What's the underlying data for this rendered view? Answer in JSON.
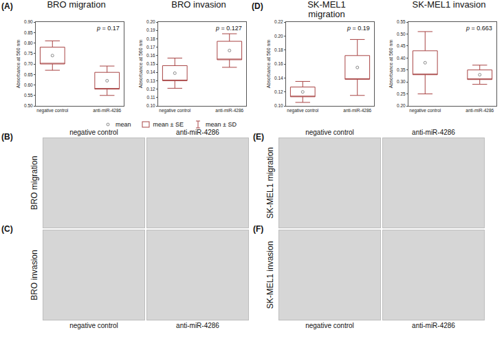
{
  "chart_data": [
    {
      "type": "box",
      "panel": "(A)",
      "title": "BRO migration",
      "categories": [
        "negative control",
        "anti-miR-4286"
      ],
      "values": [
        0.74,
        0.62
      ],
      "se": [
        0.04,
        0.04
      ],
      "sd": [
        0.07,
        0.07
      ],
      "color": "#a84444",
      "marker": "circle-open",
      "y_label": "Absorbance at 560 nm",
      "annotation": "p = 0.17",
      "ylim": [
        0.5,
        0.9
      ],
      "yticks": [
        {
          "value": 0.5,
          "label": "0.50"
        },
        0.55,
        {
          "value": 0.6,
          "label": "0.60"
        },
        0.65,
        {
          "value": 0.7,
          "label": "0.70"
        },
        0.75,
        {
          "value": 0.8,
          "label": "0.80"
        },
        0.85,
        {
          "value": 0.9,
          "label": "0.90"
        }
      ]
    },
    {
      "type": "box",
      "panel": "",
      "title": "BRO invasion",
      "categories": [
        "negative control",
        "anti-miR-4286"
      ],
      "values": [
        0.139,
        0.166
      ],
      "se": [
        0.009,
        0.011
      ],
      "sd": [
        0.018,
        0.02
      ],
      "color": "#a84444",
      "marker": "circle-open",
      "y_label": "Absorbance at 560 nm",
      "annotation": "p = 0.127",
      "ylim": [
        0.1,
        0.2
      ],
      "yticks": [
        {
          "value": 0.1,
          "label": "0.10"
        },
        0.11,
        0.12,
        0.13,
        0.14,
        0.15,
        0.16,
        0.17,
        0.18,
        0.19,
        {
          "value": 0.2,
          "label": "0.20"
        }
      ]
    },
    {
      "type": "box",
      "panel": "(D)",
      "title": "SK-MEL1 migration",
      "categories": [
        "negative control",
        "anti-miR-4286"
      ],
      "values": [
        0.12,
        0.155
      ],
      "se": [
        0.007,
        0.017
      ],
      "sd": [
        0.015,
        0.04
      ],
      "color": "#a84444",
      "marker": "circle-open",
      "y_label": "Absorbance at 560 nm",
      "annotation": "p = 0.19",
      "ylim": [
        0.1,
        0.22
      ],
      "yticks": [
        {
          "value": 0.1,
          "label": "0.10"
        },
        0.12,
        0.14,
        0.16,
        0.18,
        {
          "value": 0.2,
          "label": "0.20"
        },
        0.22
      ]
    },
    {
      "type": "box",
      "panel": "",
      "title": "SK-MEL1 invasion",
      "categories": [
        "negative control",
        "anti-miR-4286"
      ],
      "values": [
        0.38,
        0.33
      ],
      "se": [
        0.05,
        0.02
      ],
      "sd": [
        0.13,
        0.04
      ],
      "color": "#a84444",
      "marker": "circle-open",
      "y_label": "Absorbance at 560 nm",
      "annotation": "p = 0.663",
      "ylim": [
        0.2,
        0.55
      ],
      "yticks": [
        {
          "value": 0.2,
          "label": "0.20"
        },
        0.25,
        {
          "value": 0.3,
          "label": "0.30"
        },
        0.35,
        {
          "value": 0.4,
          "label": "0.40"
        },
        0.45,
        {
          "value": 0.5,
          "label": "0.50"
        },
        0.55
      ]
    }
  ],
  "legend_items": [
    "mean",
    "mean ± SE",
    "mean ± SD"
  ],
  "image_panels": [
    {
      "panel": "(B)",
      "label": "BRO migration",
      "captions_above": [
        "negative control",
        "anti-miR-4286"
      ]
    },
    {
      "panel": "(C)",
      "label": "BRO invasion",
      "captions_below": [
        "negative control",
        "anti-miR-4286"
      ]
    },
    {
      "panel": "(E)",
      "label": "SK-MEL1 migration",
      "captions_above": [
        "negative control",
        "anti-miR-4286"
      ]
    },
    {
      "panel": "(F)",
      "label": "SK-MEL1 invasion",
      "captions_below": [
        "negative control",
        "anti-miR-4286"
      ]
    }
  ]
}
